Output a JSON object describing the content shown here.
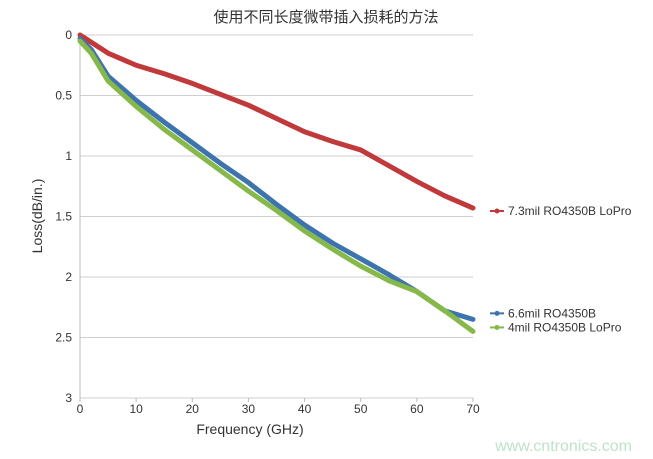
{
  "chart_data": {
    "type": "line",
    "title": "使用不同长度微带插入损耗的方法",
    "xlabel": "Frequency (GHz)",
    "ylabel": "Loss(dB/in.)",
    "xlim": [
      0,
      70
    ],
    "ylim": [
      0,
      3
    ],
    "y_inverted": true,
    "x_ticks": [
      "0",
      "10",
      "20",
      "30",
      "40",
      "50",
      "60",
      "70"
    ],
    "y_ticks": [
      "0",
      "0.5",
      "1",
      "1.5",
      "2",
      "2.5",
      "3"
    ],
    "grid": "horizontal",
    "legend_placement": "right, at line ends",
    "x": [
      0,
      2,
      5,
      10,
      15,
      20,
      25,
      30,
      35,
      40,
      45,
      50,
      55,
      60,
      65,
      70
    ],
    "series": [
      {
        "name": "7.3mil RO4350B LoPro",
        "color": "#c0393b",
        "values": [
          0,
          0.06,
          0.15,
          0.25,
          0.32,
          0.4,
          0.49,
          0.58,
          0.69,
          0.8,
          0.88,
          0.95,
          1.08,
          1.21,
          1.33,
          1.43
        ]
      },
      {
        "name": "6.6mil RO4350B",
        "color": "#3d74ad",
        "values": [
          0.03,
          0.12,
          0.34,
          0.54,
          0.72,
          0.89,
          1.06,
          1.22,
          1.4,
          1.57,
          1.72,
          1.85,
          1.98,
          2.12,
          2.28,
          2.35
        ]
      },
      {
        "name": "4mil RO4350B LoPro",
        "color": "#86b84a",
        "values": [
          0.05,
          0.15,
          0.38,
          0.59,
          0.78,
          0.95,
          1.12,
          1.29,
          1.45,
          1.62,
          1.77,
          1.91,
          2.03,
          2.12,
          2.28,
          2.45
        ]
      }
    ]
  },
  "watermark": "www.cntronics.com"
}
